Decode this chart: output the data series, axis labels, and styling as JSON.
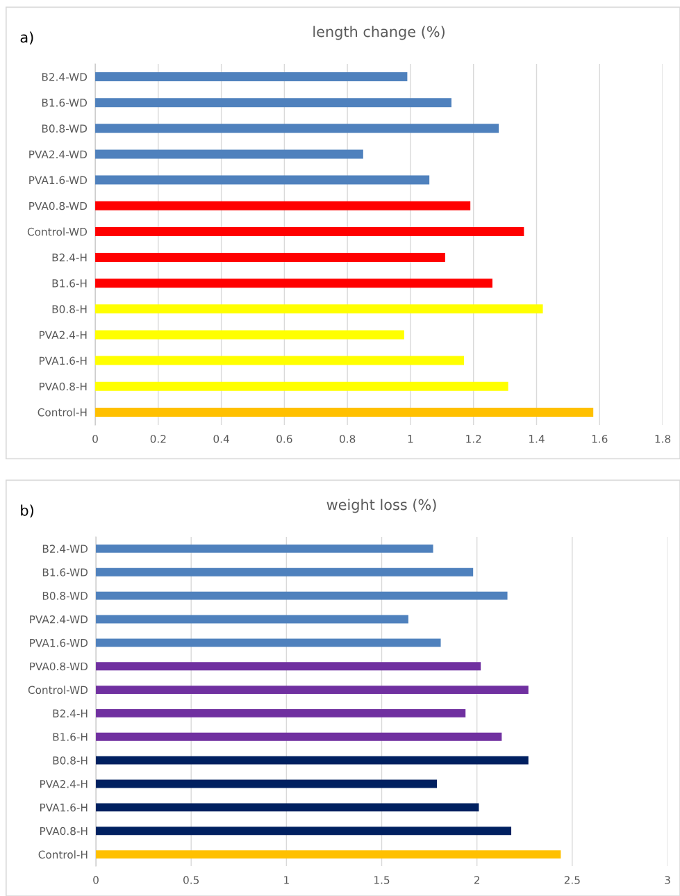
{
  "chart_data": [
    {
      "type": "bar",
      "orientation": "horizontal",
      "title": "length change (%)",
      "annotations": [
        "a)"
      ],
      "categories": [
        "B2.4-WD",
        "B1.6-WD",
        "B0.8-WD",
        "PVA2.4-WD",
        "PVA1.6-WD",
        "PVA0.8-WD",
        "Control-WD",
        "B2.4-H",
        "B1.6-H",
        "B0.8-H",
        "PVA2.4-H",
        "PVA1.6-H",
        "PVA0.8-H",
        "Control-H"
      ],
      "values": [
        0.99,
        1.13,
        1.28,
        0.85,
        1.06,
        1.19,
        1.36,
        1.11,
        1.26,
        1.42,
        0.98,
        1.17,
        1.31,
        1.58
      ],
      "colors": [
        "#4f81bd",
        "#4f81bd",
        "#4f81bd",
        "#4f81bd",
        "#4f81bd",
        "#ff0000",
        "#ff0000",
        "#ff0000",
        "#ff0000",
        "#ffff00",
        "#ffff00",
        "#ffff00",
        "#ffff00",
        "#ffc000"
      ],
      "xlim": [
        0,
        1.8
      ],
      "xticks": [
        0,
        0.2,
        0.4,
        0.6,
        0.8,
        1,
        1.2,
        1.4,
        1.6,
        1.8
      ],
      "grid": "x",
      "legend": false
    },
    {
      "type": "bar",
      "orientation": "horizontal",
      "title": "weight loss (%)",
      "annotations": [
        "b)"
      ],
      "categories": [
        "B2.4-WD",
        "B1.6-WD",
        "B0.8-WD",
        "PVA2.4-WD",
        "PVA1.6-WD",
        "PVA0.8-WD",
        "Control-WD",
        "B2.4-H",
        "B1.6-H",
        "B0.8-H",
        "PVA2.4-H",
        "PVA1.6-H",
        "PVA0.8-H",
        "Control-H"
      ],
      "values": [
        1.77,
        1.98,
        2.16,
        1.64,
        1.81,
        2.02,
        2.27,
        1.94,
        2.13,
        2.27,
        1.79,
        2.01,
        2.18,
        2.44
      ],
      "colors": [
        "#4f81bd",
        "#4f81bd",
        "#4f81bd",
        "#4f81bd",
        "#4f81bd",
        "#7030a0",
        "#7030a0",
        "#7030a0",
        "#7030a0",
        "#002060",
        "#002060",
        "#002060",
        "#002060",
        "#ffc000"
      ],
      "xlim": [
        0,
        3
      ],
      "xticks": [
        0,
        0.5,
        1,
        1.5,
        2,
        2.5,
        3
      ],
      "grid": "x",
      "legend": false
    }
  ]
}
